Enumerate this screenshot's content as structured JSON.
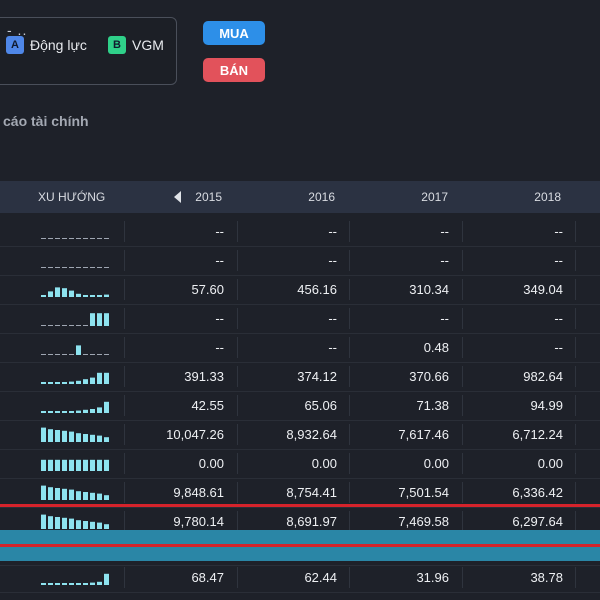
{
  "header": {
    "top_dash": "- ..",
    "legend": [
      {
        "letter": "A",
        "label": "Động lực",
        "color": "#4f87e8"
      },
      {
        "letter": "B",
        "label": "VGM",
        "color": "#2fd089"
      }
    ],
    "buy_label": "MUA",
    "sell_label": "BÁN",
    "section_title": "cáo tài chính"
  },
  "table": {
    "trend_header": "XU HƯỚNG",
    "years": [
      "2015",
      "2016",
      "2017",
      "2018"
    ],
    "rows": [
      {
        "trend": [
          0,
          0,
          0,
          0,
          0,
          0,
          0,
          0,
          0,
          0
        ],
        "values": [
          "--",
          "--",
          "--",
          "--"
        ]
      },
      {
        "trend": [
          0,
          0,
          0,
          0,
          0,
          0,
          0,
          0,
          0,
          0
        ],
        "values": [
          "--",
          "--",
          "--",
          "--"
        ]
      },
      {
        "trend": [
          0.05,
          0.35,
          0.6,
          0.55,
          0.4,
          0.2,
          0.1,
          0.12,
          0.1,
          0.15
        ],
        "values": [
          "57.60",
          "456.16",
          "310.34",
          "349.04"
        ]
      },
      {
        "trend": [
          0,
          0,
          0,
          0,
          0,
          0,
          0,
          0.8,
          0.8,
          0.8
        ],
        "values": [
          "--",
          "--",
          "--",
          "--"
        ]
      },
      {
        "trend": [
          0,
          0,
          0,
          0,
          0,
          0.6,
          0,
          0,
          0,
          0
        ],
        "values": [
          "--",
          "--",
          "0.48",
          "--"
        ]
      },
      {
        "trend": [
          0.05,
          0.1,
          0.1,
          0.1,
          0.15,
          0.2,
          0.3,
          0.4,
          0.7,
          0.7
        ],
        "values": [
          "391.33",
          "374.12",
          "370.66",
          "982.64"
        ]
      },
      {
        "trend": [
          0.05,
          0.08,
          0.1,
          0.1,
          0.12,
          0.15,
          0.2,
          0.25,
          0.35,
          0.7
        ],
        "values": [
          "42.55",
          "65.06",
          "71.38",
          "94.99"
        ]
      },
      {
        "trend": [
          0.9,
          0.8,
          0.75,
          0.7,
          0.65,
          0.55,
          0.5,
          0.45,
          0.4,
          0.3
        ],
        "values": [
          "10,047.26",
          "8,932.64",
          "7,617.46",
          "6,712.24"
        ]
      },
      {
        "trend": [
          0.7,
          0.7,
          0.7,
          0.7,
          0.7,
          0.7,
          0.7,
          0.7,
          0.7,
          0.7
        ],
        "values": [
          "0.00",
          "0.00",
          "0.00",
          "0.00"
        ]
      },
      {
        "trend": [
          0.9,
          0.8,
          0.75,
          0.7,
          0.65,
          0.55,
          0.5,
          0.45,
          0.4,
          0.3
        ],
        "values": [
          "9,848.61",
          "8,754.41",
          "7,501.54",
          "6,336.42"
        ]
      },
      {
        "trend": [
          0.9,
          0.8,
          0.75,
          0.7,
          0.65,
          0.55,
          0.5,
          0.45,
          0.4,
          0.3
        ],
        "values": [
          "9,780.14",
          "8,691.97",
          "7,469.58",
          "6,297.64"
        ]
      },
      {
        "trend": [
          0,
          0,
          0,
          0,
          0,
          0,
          0,
          0,
          0,
          0
        ],
        "values": [
          "",
          "",
          "",
          ""
        ]
      },
      {
        "trend": [
          0.05,
          0.05,
          0.1,
          0.1,
          0.1,
          0.1,
          0.12,
          0.15,
          0.2,
          0.7
        ],
        "values": [
          "68.47",
          "62.44",
          "31.96",
          "38.78"
        ]
      }
    ]
  },
  "colors": {
    "spark": "#8ee3ef",
    "highlight_red": "#d5232b",
    "highlight_blue": "#2a86a6"
  }
}
